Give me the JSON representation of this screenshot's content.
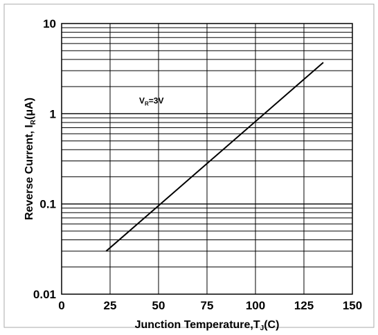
{
  "chart_data": {
    "type": "line",
    "title": "",
    "xlabel": "Junction  Temperature,T",
    "xlabel_sub": "J",
    "xlabel_suffix": "(C)",
    "ylabel": "Reverse  Current, I",
    "ylabel_sub": "R",
    "ylabel_suffix": "(μA)",
    "xlim": [
      0,
      150
    ],
    "ylim": [
      0.01,
      10
    ],
    "yscale": "log",
    "grid": true,
    "x_ticks": [
      0,
      25,
      50,
      75,
      100,
      125,
      150
    ],
    "x_tick_labels": [
      "0",
      "25",
      "50",
      "75",
      "100",
      "125",
      "150"
    ],
    "y_ticks": [
      0.01,
      0.1,
      1,
      10
    ],
    "y_tick_labels": [
      "0.01",
      "0.1",
      "1",
      "10"
    ],
    "annotation": {
      "main": "V",
      "sub": "R",
      "suffix": "=3V",
      "x": 40,
      "y": 1.3
    },
    "series": [
      {
        "x": [
          23,
          135
        ],
        "y": [
          0.03,
          3.7
        ]
      }
    ],
    "colors": {
      "line": "#000000",
      "grid": "#000000",
      "frame": "#aaaaaa"
    }
  }
}
